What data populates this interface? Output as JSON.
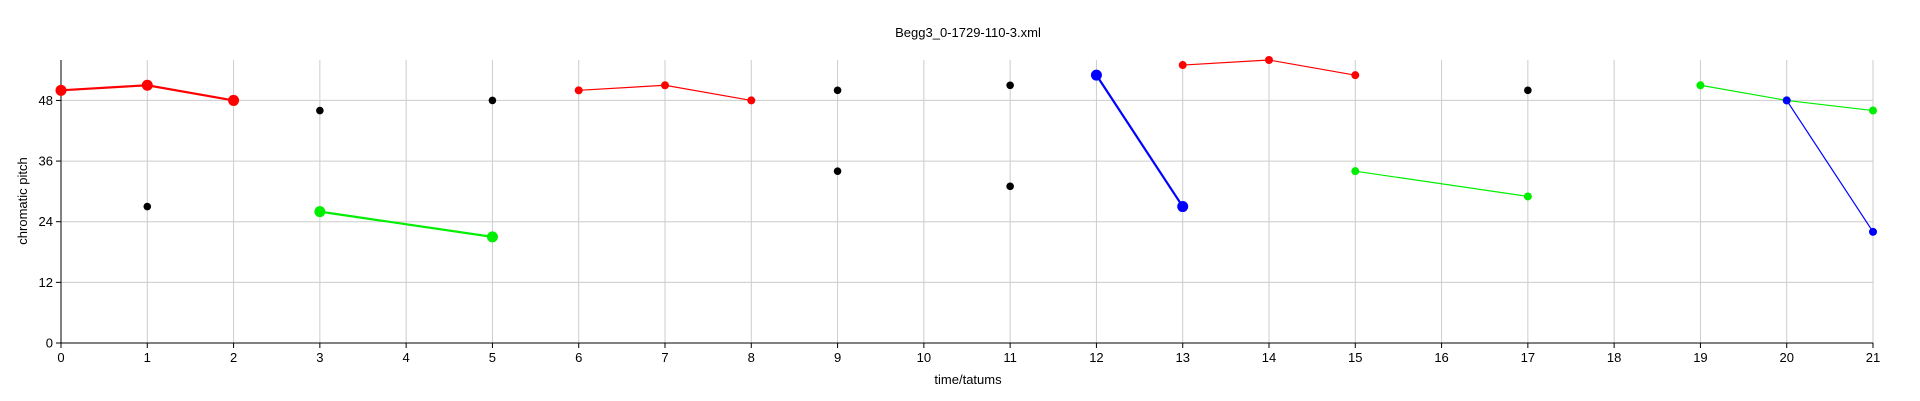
{
  "chart_data": {
    "type": "scatter",
    "title": "Begg3_0-1729-110-3.xml",
    "xlabel": "time/tatums",
    "ylabel": "chromatic pitch",
    "xlim": [
      0,
      21
    ],
    "ylim": [
      0,
      56
    ],
    "xticks": [
      0,
      1,
      2,
      3,
      4,
      5,
      6,
      7,
      8,
      9,
      10,
      11,
      12,
      13,
      14,
      15,
      16,
      17,
      18,
      19,
      20,
      21
    ],
    "yticks": [
      0,
      12,
      24,
      36,
      48
    ],
    "grid": true,
    "colors": {
      "red": "#ff0000",
      "green": "#00ee00",
      "blue": "#0000ff",
      "black": "#000000"
    },
    "lines": [
      {
        "color": "red",
        "weight": "heavy",
        "points": [
          [
            0,
            50
          ],
          [
            1,
            51
          ],
          [
            2,
            48
          ]
        ]
      },
      {
        "color": "green",
        "weight": "heavy",
        "points": [
          [
            3,
            26
          ],
          [
            5,
            21
          ]
        ]
      },
      {
        "color": "red",
        "weight": "light",
        "points": [
          [
            6,
            50
          ],
          [
            7,
            51
          ],
          [
            8,
            48
          ]
        ]
      },
      {
        "color": "blue",
        "weight": "heavy",
        "points": [
          [
            12,
            53
          ],
          [
            13,
            27
          ]
        ]
      },
      {
        "color": "red",
        "weight": "light",
        "points": [
          [
            13,
            55
          ],
          [
            14,
            56
          ],
          [
            15,
            53
          ]
        ]
      },
      {
        "color": "green",
        "weight": "light",
        "points": [
          [
            15,
            34
          ],
          [
            17,
            29
          ]
        ]
      },
      {
        "color": "green",
        "weight": "light",
        "points": [
          [
            19,
            51
          ],
          [
            20,
            48
          ],
          [
            21,
            46
          ]
        ]
      },
      {
        "color": "blue",
        "weight": "light",
        "points": [
          [
            20,
            48
          ],
          [
            21,
            22
          ]
        ]
      }
    ],
    "points": [
      {
        "x": 1,
        "y": 27,
        "color": "black"
      },
      {
        "x": 3,
        "y": 46,
        "color": "black"
      },
      {
        "x": 5,
        "y": 48,
        "color": "black"
      },
      {
        "x": 9,
        "y": 50,
        "color": "black"
      },
      {
        "x": 9,
        "y": 34,
        "color": "black"
      },
      {
        "x": 11,
        "y": 51,
        "color": "black"
      },
      {
        "x": 11,
        "y": 31,
        "color": "black"
      },
      {
        "x": 17,
        "y": 50,
        "color": "black"
      }
    ]
  }
}
